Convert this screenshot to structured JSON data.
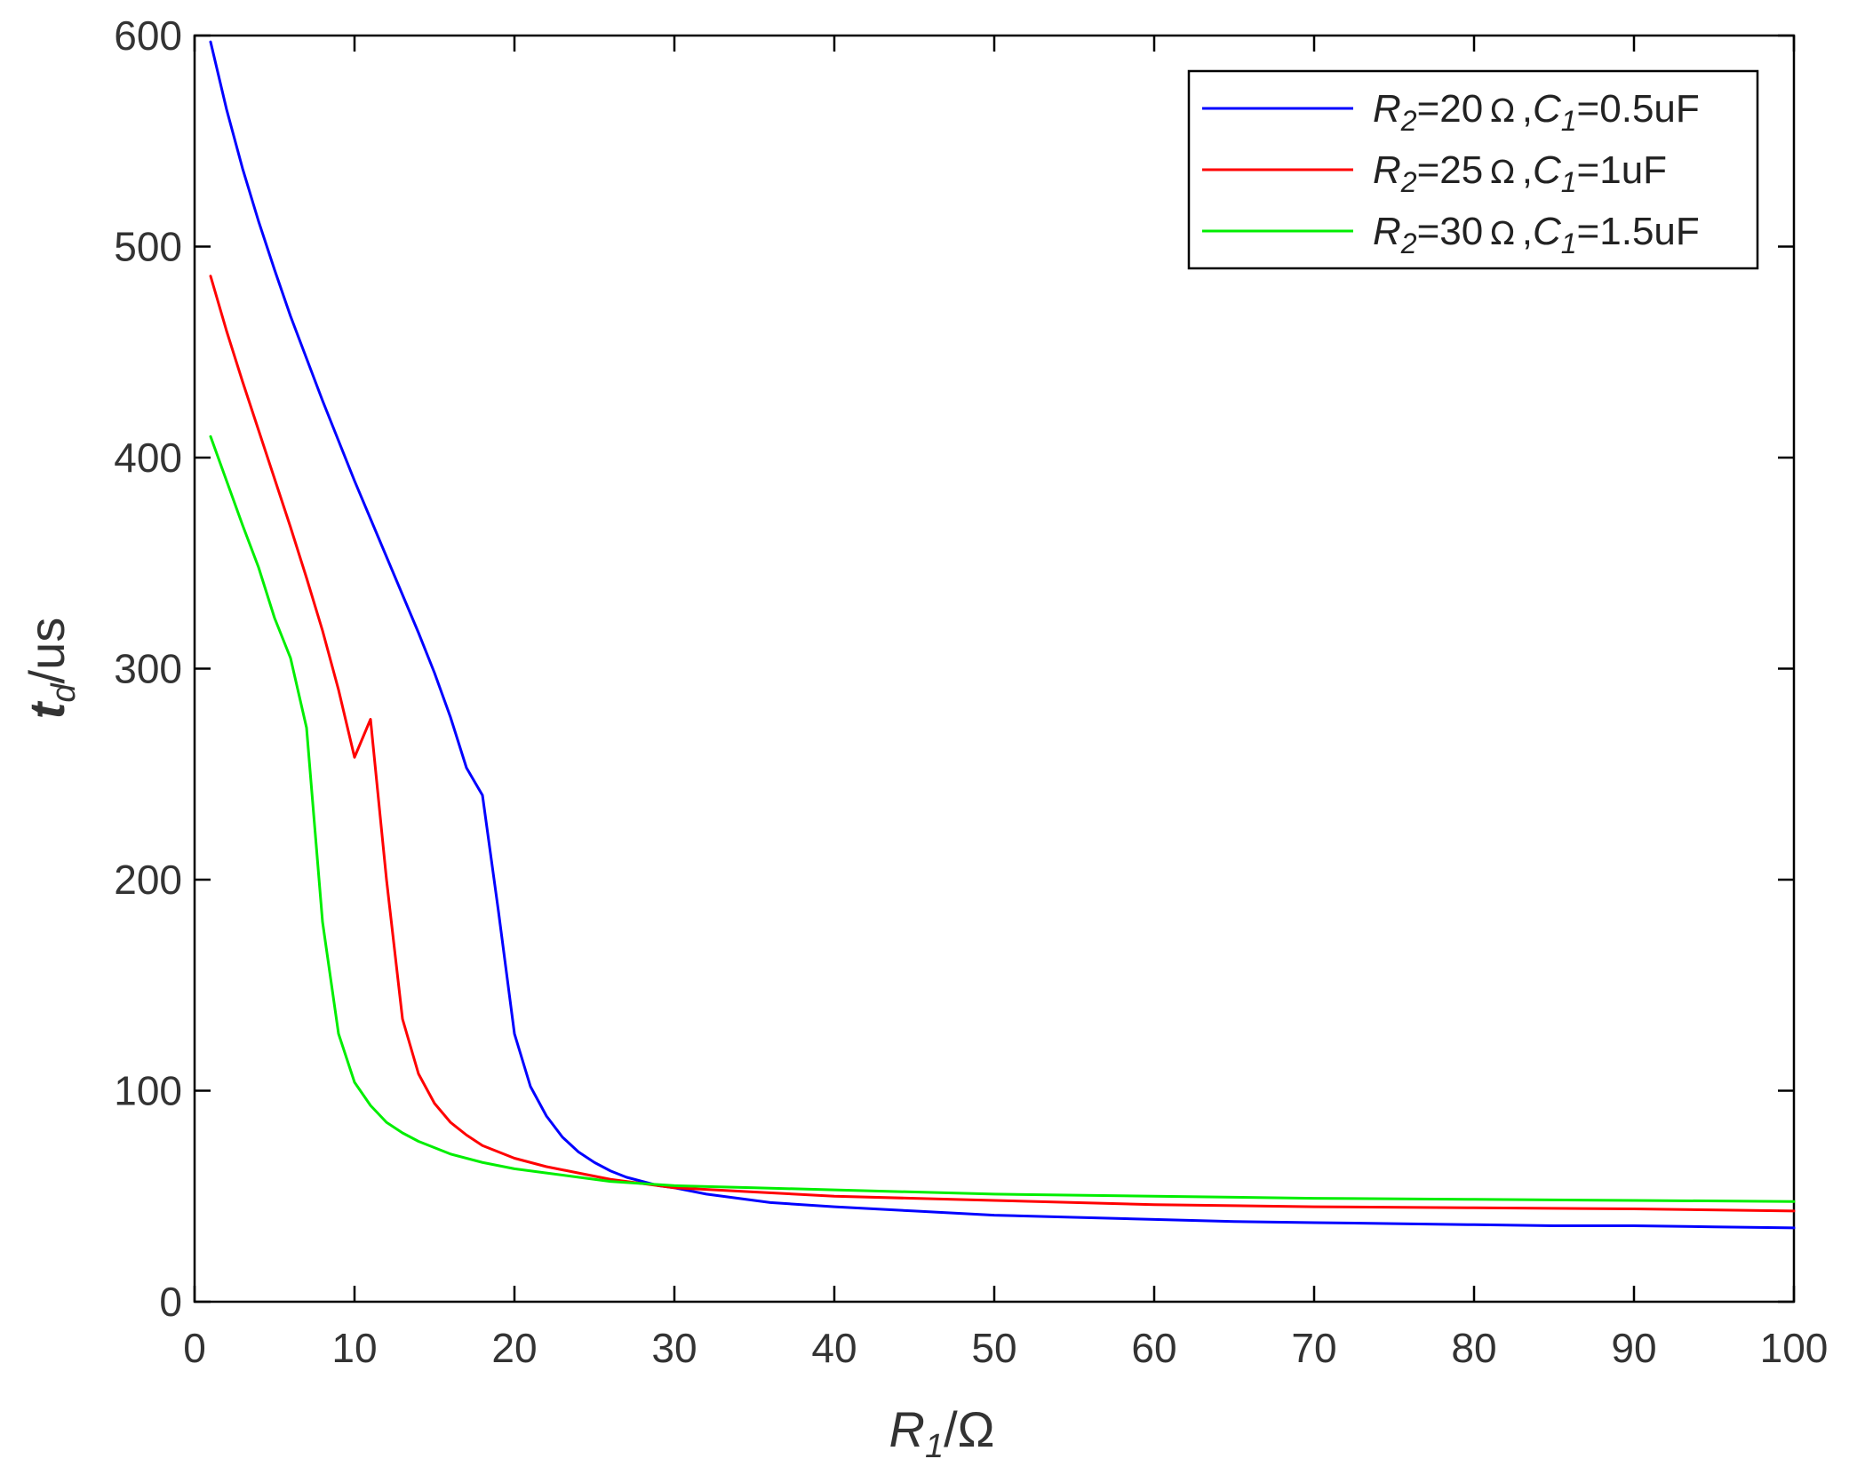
{
  "chart_data": {
    "type": "line",
    "xlabel": {
      "var": "R",
      "sub": "1",
      "unit": "/Ω"
    },
    "ylabel": {
      "var": "t",
      "sub": "d",
      "unit": "/us"
    },
    "xlim": [
      0,
      100
    ],
    "ylim": [
      0,
      600
    ],
    "xticks": [
      "0",
      "10",
      "20",
      "30",
      "40",
      "50",
      "60",
      "70",
      "80",
      "90",
      "100"
    ],
    "yticks": [
      "0",
      "100",
      "200",
      "300",
      "400",
      "500",
      "600"
    ],
    "grid": false,
    "legend_position": "top-right",
    "series": [
      {
        "name": "R2=20 Ω ,C1=0.5uF",
        "label": {
          "r_sub": "2",
          "r_val": "=20",
          "ohm": "Ω",
          "c_sub": "1",
          "c_val": "=0.5uF"
        },
        "color": "#0000ff",
        "x": [
          1,
          2,
          3,
          4,
          5,
          6,
          7,
          8,
          9,
          10,
          11,
          12,
          13,
          14,
          15,
          16,
          17,
          18,
          19,
          20,
          21,
          22,
          23,
          24,
          25,
          26,
          27,
          28,
          29,
          30,
          32,
          34,
          36,
          40,
          45,
          50,
          55,
          60,
          65,
          70,
          75,
          80,
          85,
          90,
          95,
          100
        ],
        "y": [
          597,
          565,
          537,
          512,
          489,
          467,
          447,
          427,
          408,
          389,
          371,
          353,
          335,
          317,
          298,
          277,
          253,
          240,
          185,
          127,
          102,
          88,
          78,
          71,
          66,
          62,
          59,
          57,
          55,
          54,
          51,
          49,
          47,
          45,
          43,
          41,
          40,
          39,
          38,
          37.5,
          37,
          36.5,
          36,
          36,
          35.5,
          35
        ]
      },
      {
        "name": "R2=25 Ω ,C1=1uF",
        "label": {
          "r_sub": "2",
          "r_val": "=25",
          "ohm": "Ω",
          "c_sub": "1",
          "c_val": "=1uF"
        },
        "color": "#ff0000",
        "x": [
          1,
          2,
          3,
          4,
          5,
          6,
          7,
          8,
          9,
          10,
          11,
          12,
          13,
          14,
          15,
          16,
          17,
          18,
          19,
          20,
          22,
          24,
          26,
          28,
          30,
          35,
          40,
          45,
          50,
          60,
          70,
          80,
          90,
          100
        ],
        "y": [
          486,
          460,
          436,
          413,
          390,
          367,
          343,
          318,
          290,
          258,
          276,
          200,
          134,
          108,
          94,
          85,
          79,
          74,
          71,
          68,
          64,
          61,
          58,
          56,
          54,
          52,
          50,
          49,
          48,
          46,
          45,
          44.5,
          44,
          43
        ]
      },
      {
        "name": "R2=30 Ω ,C1=1.5uF",
        "label": {
          "r_sub": "2",
          "r_val": "=30",
          "ohm": "Ω",
          "c_sub": "1",
          "c_val": "=1.5uF"
        },
        "color": "#00ee00",
        "x": [
          1,
          2,
          3,
          4,
          5,
          6,
          7,
          8,
          9,
          10,
          11,
          12,
          13,
          14,
          15,
          16,
          18,
          20,
          22,
          24,
          26,
          28,
          30,
          35,
          40,
          50,
          60,
          70,
          80,
          90,
          100
        ],
        "y": [
          410,
          389,
          368,
          348,
          324,
          305,
          272,
          180,
          127,
          104,
          93,
          85,
          80,
          76,
          73,
          70,
          66,
          63,
          61,
          59,
          57,
          56,
          55,
          54,
          53,
          51,
          50,
          49,
          48.5,
          48,
          47.5
        ]
      }
    ]
  }
}
